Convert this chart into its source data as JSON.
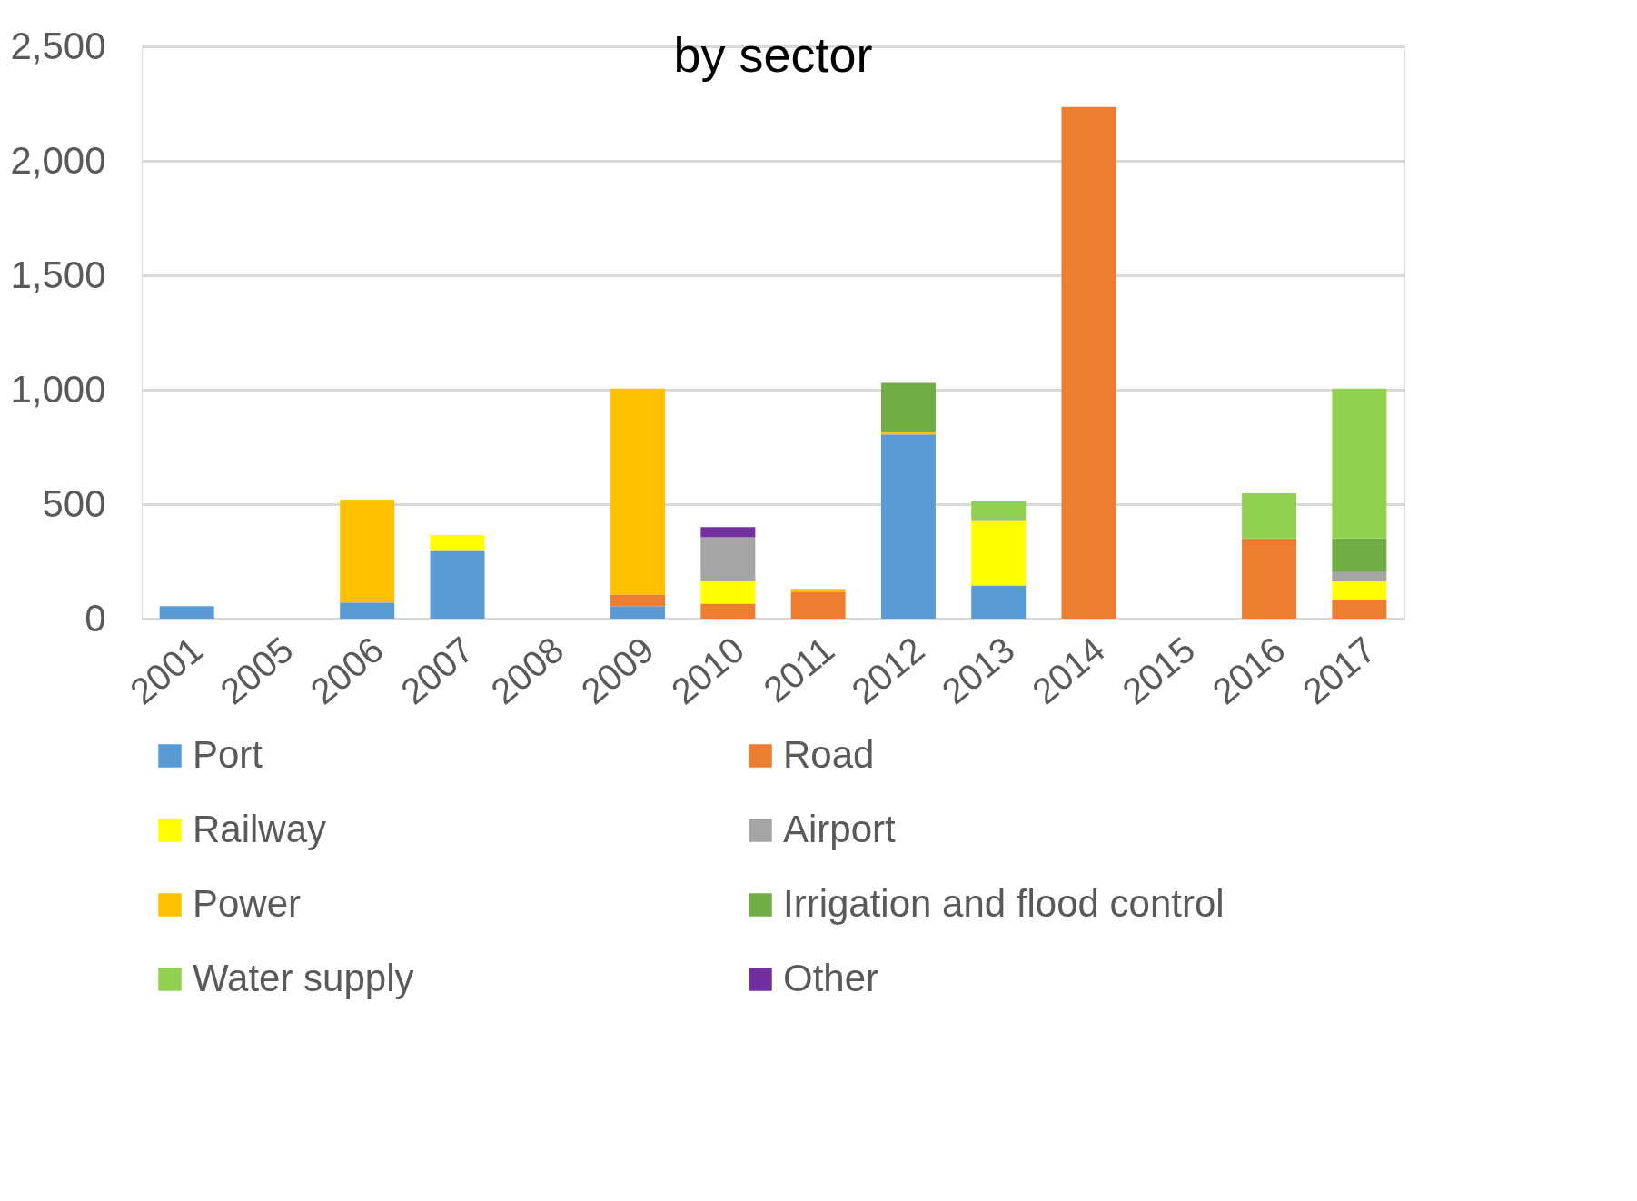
{
  "chart_data": {
    "type": "bar",
    "title": "by sector",
    "stacked": true,
    "legend": "bottom",
    "grid": "y",
    "categories": [
      "2001",
      "2005",
      "2006",
      "2007",
      "2008",
      "2009",
      "2010",
      "2011",
      "2012",
      "2013",
      "2014",
      "2015",
      "2016",
      "2017"
    ],
    "ylim": [
      0,
      2500
    ],
    "yticks": [
      {
        "value": 0,
        "label": "0"
      },
      {
        "value": 500,
        "label": "500"
      },
      {
        "value": 1000,
        "label": "1,000"
      },
      {
        "value": 1500,
        "label": "1,500"
      },
      {
        "value": 2000,
        "label": "2,000"
      },
      {
        "value": 2500,
        "label": "2,500"
      }
    ],
    "series": [
      {
        "name": "Port",
        "color": "#5b9bd5",
        "values": [
          55,
          null,
          70,
          300,
          null,
          55,
          null,
          null,
          805,
          145,
          null,
          null,
          null,
          null
        ]
      },
      {
        "name": "Road",
        "color": "#ed7d31",
        "values": [
          null,
          null,
          null,
          null,
          null,
          50,
          65,
          115,
          null,
          null,
          2235,
          null,
          350,
          83
        ]
      },
      {
        "name": "Railway",
        "color": "#ffff00",
        "values": [
          null,
          null,
          null,
          65,
          null,
          null,
          100,
          null,
          null,
          285,
          null,
          null,
          null,
          80
        ]
      },
      {
        "name": "Airport",
        "color": "#a5a5a5",
        "values": [
          null,
          null,
          null,
          null,
          null,
          null,
          190,
          null,
          null,
          null,
          null,
          null,
          null,
          43
        ]
      },
      {
        "name": "Power",
        "color": "#ffc000",
        "values": [
          null,
          null,
          450,
          null,
          null,
          900,
          null,
          15,
          10,
          null,
          null,
          null,
          null,
          null
        ]
      },
      {
        "name": "Irrigation and flood control",
        "color": "#70ad47",
        "values": [
          null,
          null,
          null,
          null,
          null,
          null,
          null,
          null,
          215,
          null,
          null,
          null,
          null,
          144
        ]
      },
      {
        "name": "Water supply",
        "color": "#92d050",
        "values": [
          null,
          null,
          null,
          null,
          null,
          null,
          null,
          null,
          null,
          82,
          null,
          null,
          198,
          655
        ]
      },
      {
        "name": "Other",
        "color": "#7030a0",
        "values": [
          null,
          null,
          null,
          null,
          null,
          null,
          45,
          null,
          null,
          null,
          null,
          null,
          null,
          null
        ]
      }
    ]
  }
}
